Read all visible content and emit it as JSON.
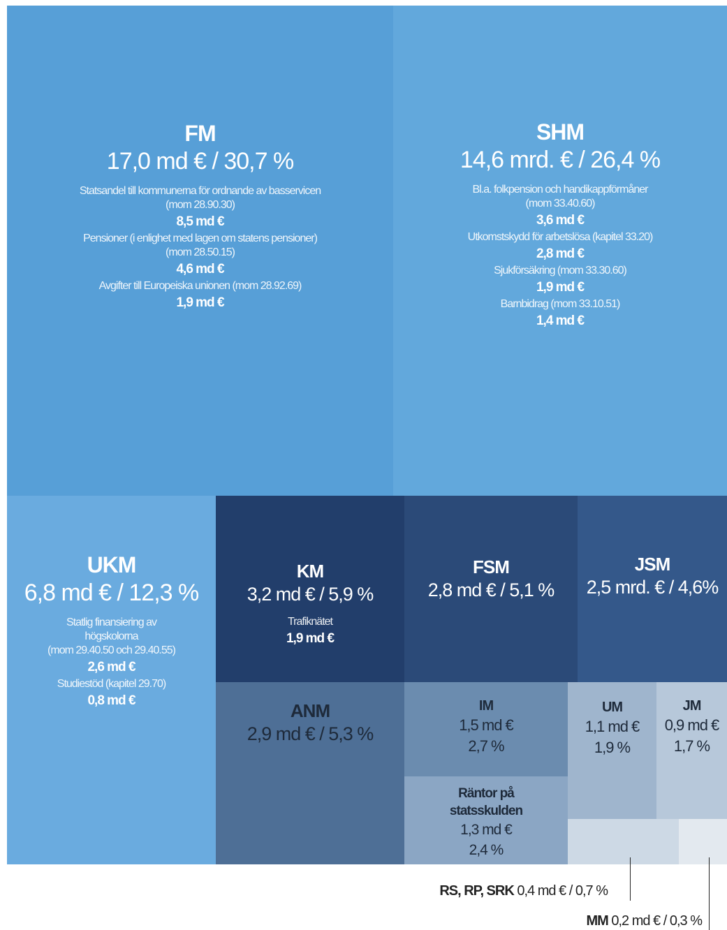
{
  "chart_data": {
    "type": "treemap",
    "tiles": [
      {
        "name": "FM",
        "headline": [
          "17,0 md € /  30,7 %"
        ],
        "details": [
          {
            "lines": [
              "Statsandel till kommunerna för ordnande av basservicen",
              "(mom 28.90.30)"
            ],
            "amount": "8,5 md €"
          },
          {
            "lines": [
              "Pensioner (i enlighet med lagen om statens pensioner)",
              "(mom 28.50.15)"
            ],
            "amount": "4,6 md €"
          },
          {
            "lines": [
              "Avgifter till Europeiska unionen (mom 28.92.69)"
            ],
            "amount": "1,9 md €"
          }
        ]
      },
      {
        "name": "SHM",
        "headline": [
          "14,6 mrd. € / 26,4 %"
        ],
        "details": [
          {
            "lines": [
              "Bl.a. folkpension och handikappförmåner",
              "(mom 33.40.60)"
            ],
            "amount": "3,6 md €"
          },
          {
            "lines": [
              "Utkomstskydd för arbetslösa (kapitel 33.20)"
            ],
            "amount": "2,8 md €"
          },
          {
            "lines": [
              "Sjukförsäkring (mom 33.30.60)"
            ],
            "amount": "1,9 md €"
          },
          {
            "lines": [
              "Barnbidrag (mom 33.10.51)"
            ],
            "amount": "1,4 md €"
          }
        ]
      },
      {
        "name": "UKM",
        "headline": [
          "6,8 md € / 12,3 %"
        ],
        "details": [
          {
            "lines": [
              "Statlig finansiering av",
              "högskolorna",
              "(mom 29.40.50 och 29.40.55)"
            ],
            "amount": "2,6 md €"
          },
          {
            "lines": [
              "Studiestöd (kapitel 29.70)"
            ],
            "amount": "0,8 md €"
          }
        ]
      },
      {
        "name": "KM",
        "headline": [
          "3,2 md € / 5,9 %"
        ],
        "details": [
          {
            "lines": [
              "Trafiknätet"
            ],
            "amount": "1,9 md €"
          }
        ]
      },
      {
        "name": "FSM",
        "headline": [
          "2,8 md € / 5,1 %"
        ],
        "details": []
      },
      {
        "name": "JSM",
        "headline": [
          "2,5 mrd. € / 4,6%"
        ],
        "details": []
      },
      {
        "name": "ANM",
        "headline": [
          "2,9 md € / 5,3 %"
        ],
        "details": []
      },
      {
        "name": "IM",
        "headline": [
          "1,5 md €",
          "2,7 %"
        ],
        "details": []
      },
      {
        "name": "Räntor på statsskulden",
        "headline": [
          "1,3 md €",
          "2,4 %"
        ],
        "details": []
      },
      {
        "name": "UM",
        "headline": [
          "1,1 md €",
          "1,9 %"
        ],
        "details": []
      },
      {
        "name": "JM",
        "headline": [
          "0,9 md €",
          "1,7 %"
        ],
        "details": []
      }
    ],
    "callouts": [
      {
        "name": "RS, RP, SRK",
        "text": "0,4 md € / 0,7 %"
      },
      {
        "name": "MM",
        "text": "0,2 md € / 0,3 %"
      }
    ]
  }
}
